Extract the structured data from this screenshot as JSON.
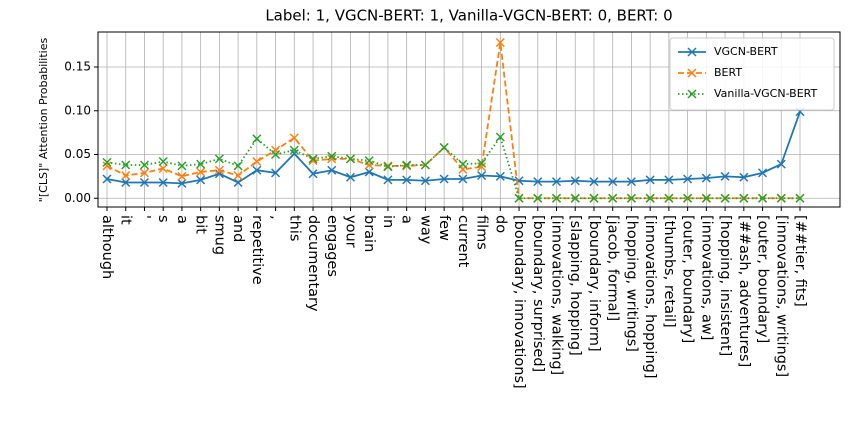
{
  "chart_data": {
    "type": "line",
    "title": "Label: 1, VGCN-BERT: 1, Vanilla-VGCN-BERT: 0, BERT: 0",
    "y_label": "\"[CLS]\" Attention Probabilities",
    "categories": [
      "although",
      "it",
      "'",
      "s",
      "a",
      "bit",
      "smug",
      "and",
      "repetitive",
      ",",
      "this",
      "documentary",
      "engages",
      "your",
      "brain",
      "in",
      "a",
      "way",
      "few",
      "current",
      "films",
      "do",
      "[boundary, innovations]",
      "[boundary, surprised]",
      "[innovations, walking]",
      "[slapping, hopping]",
      "[boundary, inform]",
      "[jacob, formal]",
      "[hopping, writings]",
      "[innovations, hopping]",
      "[thumbs, retail]",
      "[outer, boundary]",
      "[innovations, aw]",
      "[hopping, insistent]",
      "[##ash, adventures]",
      "[outer, boundary]",
      "[innovations, writings]",
      "[##tier, fits]"
    ],
    "series": [
      {
        "name": "VGCN-BERT",
        "color": "#1f77b4",
        "dash": "solid",
        "values": [
          0.022,
          0.018,
          0.018,
          0.018,
          0.017,
          0.021,
          0.028,
          0.018,
          0.032,
          0.029,
          0.051,
          0.028,
          0.032,
          0.024,
          0.03,
          0.021,
          0.021,
          0.02,
          0.022,
          0.022,
          0.026,
          0.025,
          0.02,
          0.019,
          0.019,
          0.02,
          0.019,
          0.019,
          0.019,
          0.021,
          0.021,
          0.022,
          0.023,
          0.025,
          0.024,
          0.029,
          0.039,
          0.099
        ]
      },
      {
        "name": "BERT",
        "color": "#ff7f0e",
        "dash": "dashed",
        "values": [
          0.037,
          0.026,
          0.029,
          0.034,
          0.025,
          0.03,
          0.032,
          0.026,
          0.042,
          0.055,
          0.069,
          0.043,
          0.045,
          0.045,
          0.038,
          0.037,
          0.037,
          0.038,
          0.058,
          0.033,
          0.036,
          0.178,
          0,
          0,
          0,
          0,
          0,
          0,
          0,
          0,
          0,
          0,
          0,
          0,
          0,
          0,
          0,
          0
        ]
      },
      {
        "name": "Vanilla-VGCN-BERT",
        "color": "#2ca02c",
        "dash": "dotted",
        "values": [
          0.041,
          0.038,
          0.038,
          0.042,
          0.037,
          0.039,
          0.045,
          0.037,
          0.068,
          0.05,
          0.055,
          0.045,
          0.048,
          0.045,
          0.043,
          0.036,
          0.038,
          0.038,
          0.058,
          0.039,
          0.04,
          0.07,
          0,
          0,
          0,
          0,
          0,
          0,
          0,
          0,
          0,
          0,
          0,
          0,
          0,
          0,
          0,
          0
        ]
      }
    ],
    "ylim": [
      -0.01,
      0.19
    ],
    "yticks": [
      {
        "value": 0,
        "label": "0.00"
      },
      {
        "value": 0.05,
        "label": "0.05"
      },
      {
        "value": 0.1,
        "label": "0.10"
      },
      {
        "value": 0.15,
        "label": "0.15"
      }
    ],
    "grid": true,
    "legend": "upper right"
  }
}
